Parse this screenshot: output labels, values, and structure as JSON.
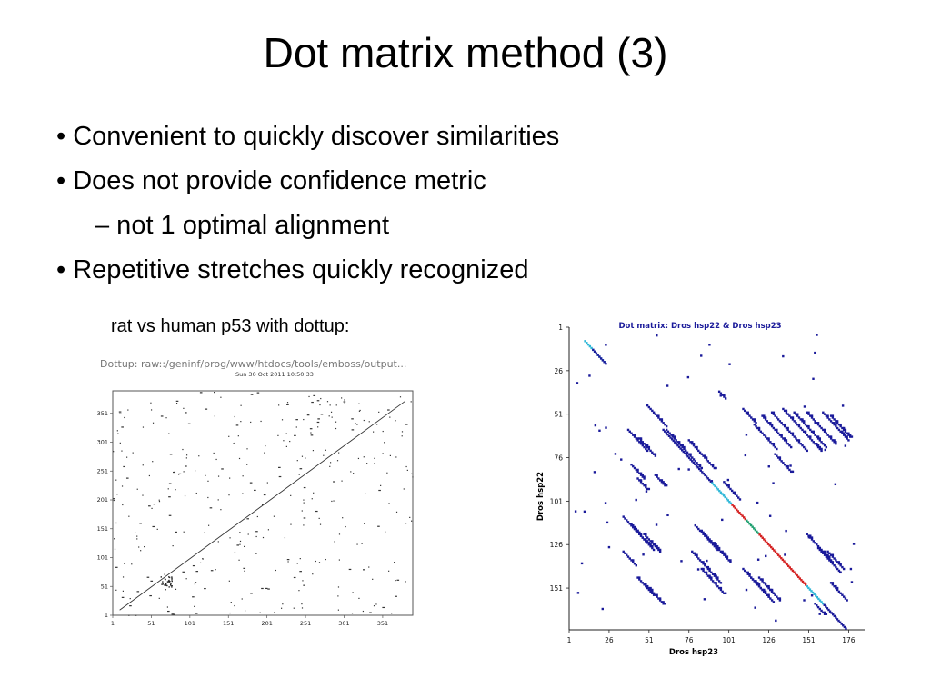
{
  "slide": {
    "title": "Dot matrix method (3)",
    "bullets": [
      {
        "text": "• Convenient to quickly discover similarities",
        "level": 1
      },
      {
        "text": "• Does not provide confidence metric",
        "level": 1
      },
      {
        "text": "– not 1 optimal alignment",
        "level": 2
      },
      {
        "text": "• Repetitive stretches quickly recognized",
        "level": 1
      }
    ],
    "caption": "rat vs human p53 with dottup:"
  },
  "chart_data": [
    {
      "type": "scatter",
      "title": "Dottup: raw::/geninf/prog/www/htdocs/tools/emboss/output...",
      "subtitle": "Sun 30 Oct 2011 10:50:33",
      "xlabel": "",
      "ylabel": "",
      "xlim": [
        1,
        390
      ],
      "ylim": [
        1,
        390
      ],
      "x_ticks": [
        "1",
        "51",
        "101",
        "151",
        "201",
        "251",
        "301",
        "351"
      ],
      "y_ticks": [
        "1",
        "51",
        "101",
        "151",
        "201",
        "251",
        "301",
        "351"
      ],
      "grid": false,
      "series": [
        {
          "kind": "diagonal",
          "x": [
            10,
            380
          ],
          "y": [
            10,
            372
          ]
        },
        {
          "kind": "block",
          "x": [
            63,
            78
          ],
          "y": [
            50,
            70
          ]
        },
        {
          "kind": "noise",
          "count": 360
        }
      ]
    },
    {
      "type": "scatter",
      "title": "Dot matrix: Dros hsp22 & Dros hsp23",
      "xlabel": "Dros hsp23",
      "ylabel": "Dros hsp22",
      "xlim": [
        1,
        186
      ],
      "ylim": [
        1,
        175
      ],
      "x_ticks": [
        "1",
        "26",
        "51",
        "76",
        "101",
        "126",
        "151",
        "176"
      ],
      "y_ticks": [
        "1",
        "26",
        "51",
        "76",
        "101",
        "126",
        "151"
      ],
      "grid": false,
      "colors": {
        "dots": "#1a1a9a",
        "high": "#d42020",
        "mid": "#20a070",
        "light": "#30b8d8",
        "title": "#1a1a9a"
      },
      "series": [
        {
          "name": "main-diagonal",
          "x": [
            78,
            161
          ],
          "y": [
            78,
            161
          ],
          "color": "mixed"
        },
        {
          "name": "off-diagonal-1",
          "x": [
            11,
            22
          ],
          "y": [
            9,
            21
          ]
        },
        {
          "name": "off-diagonal-2",
          "x": [
            75,
            90
          ],
          "y": [
            67,
            82
          ]
        },
        {
          "name": "off-diagonal-3",
          "x": [
            38,
            55
          ],
          "y": [
            60,
            75
          ]
        },
        {
          "name": "off-diagonal-4",
          "x": [
            68,
            85
          ],
          "y": [
            132,
            150
          ]
        }
      ]
    }
  ]
}
